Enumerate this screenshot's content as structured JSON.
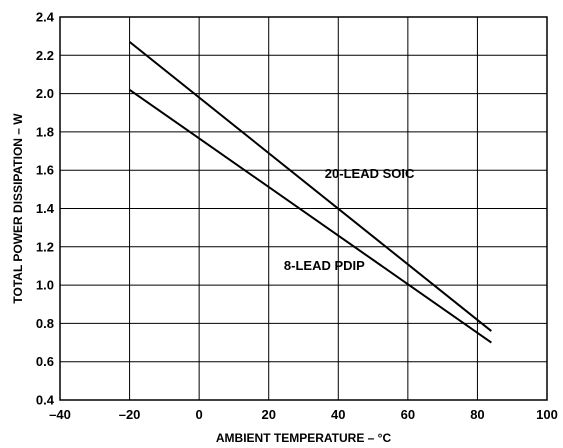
{
  "chart_data": {
    "type": "line",
    "title": "",
    "xlabel": "AMBIENT TEMPERATURE – °C",
    "ylabel": "TOTAL POWER DISSIPATION – W",
    "xlim": [
      -40,
      100
    ],
    "ylim": [
      0.4,
      2.4
    ],
    "xticks": [
      -40,
      -20,
      0,
      20,
      40,
      60,
      80,
      100
    ],
    "yticks": [
      0.4,
      0.6,
      0.8,
      1.0,
      1.2,
      1.4,
      1.6,
      1.8,
      2.0,
      2.2,
      2.4
    ],
    "xtick_labels": [
      "–40",
      "–20",
      "0",
      "20",
      "40",
      "60",
      "80",
      "100"
    ],
    "ytick_labels": [
      "0.4",
      "0.6",
      "0.8",
      "1.0",
      "1.2",
      "1.4",
      "1.6",
      "1.8",
      "2.0",
      "2.2",
      "2.4"
    ],
    "grid": true,
    "legend": "none",
    "series": [
      {
        "name": "20-LEAD SOIC",
        "x": [
          -20,
          84
        ],
        "y": [
          2.27,
          0.76
        ],
        "color": "#000000"
      },
      {
        "name": "8-LEAD PDIP",
        "x": [
          -20,
          84
        ],
        "y": [
          2.02,
          0.7
        ],
        "color": "#000000"
      }
    ],
    "annotations": [
      {
        "text": "20-LEAD SOIC",
        "x": 49,
        "y": 1.56
      },
      {
        "text": "8-LEAD PDIP",
        "x": 36,
        "y": 1.08
      }
    ]
  }
}
